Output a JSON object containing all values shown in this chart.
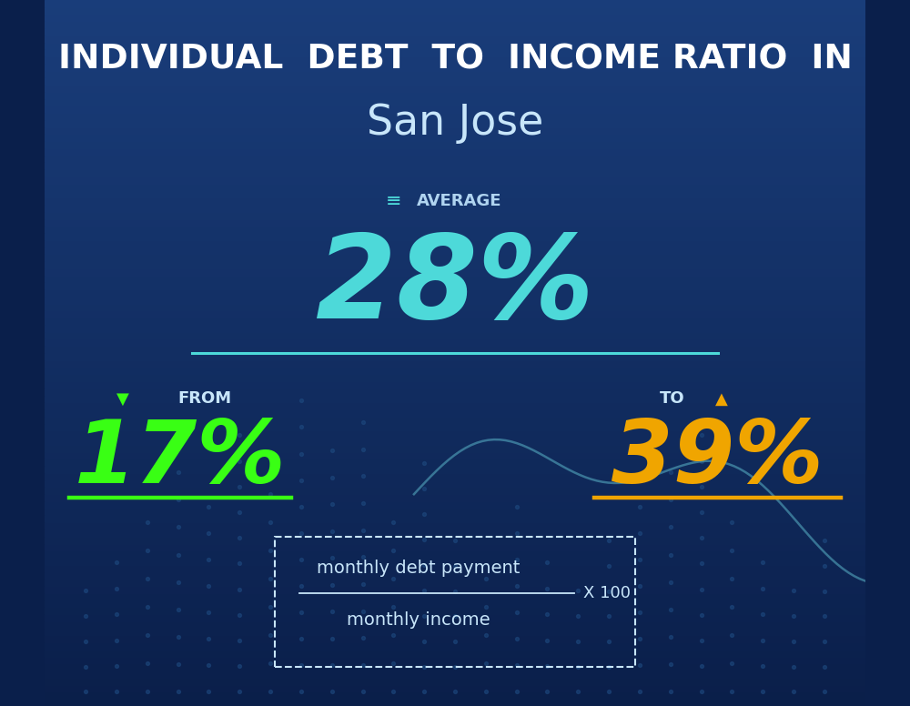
{
  "title_line1": "INDIVIDUAL  DEBT  TO  INCOME RATIO  IN",
  "title_line2": "San Jose",
  "avg_label": "AVERAGE",
  "avg_value": "28%",
  "from_label": "FROM",
  "from_value": "17%",
  "to_label": "TO",
  "to_value": "39%",
  "formula_numerator": "monthly debt payment",
  "formula_denominator": "monthly income",
  "formula_multiplier": "X 100",
  "bg_color_top": "#0a1f4b",
  "bg_color_bottom": "#0d3a7a",
  "avg_color": "#4dd9d9",
  "from_color": "#39ff14",
  "to_color": "#f0a500",
  "title1_color": "#ffffff",
  "title2_color": "#c8e6fa",
  "avg_label_color": "#b0d4f0",
  "text_color": "#c8e6fa",
  "formula_box_color": "#c8e6fa",
  "line_color_avg": "#4dd9d9",
  "line_color_from": "#39ff14",
  "line_color_to": "#f0a500",
  "bar_color": "#1e4a80",
  "chart_line_color": "#5ab4c8"
}
